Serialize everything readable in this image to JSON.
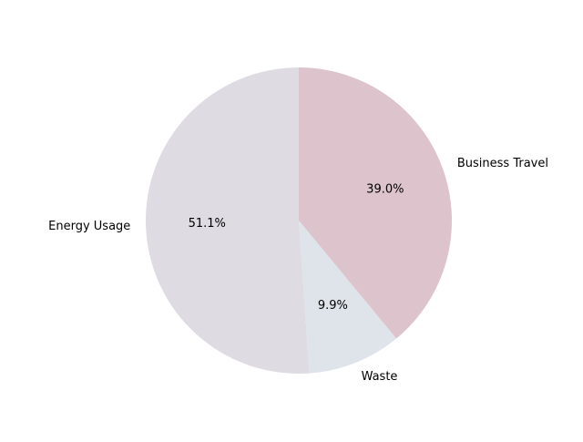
{
  "chart_data": {
    "type": "pie",
    "title": "",
    "slices": [
      {
        "label": "Business Travel",
        "value": 39.0,
        "pct_label": "39.0%",
        "color": "#dcc3cc"
      },
      {
        "label": "Waste",
        "value": 9.9,
        "pct_label": "9.9%",
        "color": "#dfe4eb"
      },
      {
        "label": "Energy Usage",
        "value": 51.1,
        "pct_label": "51.1%",
        "color": "#dedbe3"
      }
    ],
    "start_angle_deg": 90,
    "direction": "clockwise",
    "legend": "none"
  }
}
